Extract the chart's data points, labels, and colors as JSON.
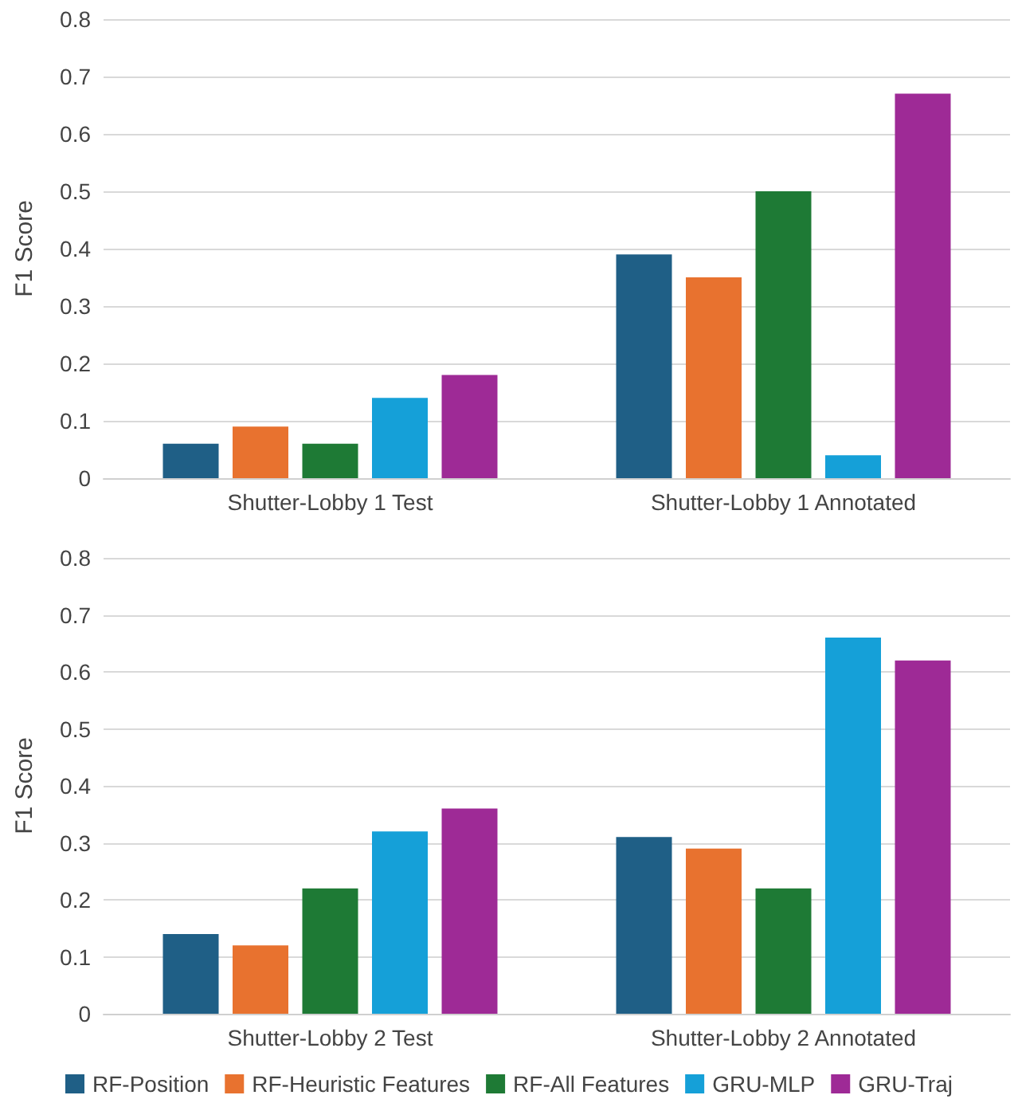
{
  "chart_data": [
    {
      "type": "bar",
      "ylabel": "F1 Score",
      "categories": [
        "Shutter-Lobby 1 Test",
        "Shutter-Lobby 1 Annotated"
      ],
      "ylim": [
        0,
        0.8
      ],
      "yticks": [
        0,
        0.1,
        0.2,
        0.3,
        0.4,
        0.5,
        0.6,
        0.7,
        0.8
      ],
      "grid": "y",
      "legend": false,
      "series": [
        {
          "color": "#1f5f86",
          "values": [
            0.06,
            0.39
          ]
        },
        {
          "color": "#e8722f",
          "values": [
            0.09,
            0.35
          ]
        },
        {
          "color": "#1e7a35",
          "values": [
            0.06,
            0.5
          ]
        },
        {
          "color": "#15a0d8",
          "values": [
            0.14,
            0.04
          ]
        },
        {
          "color": "#9e2a96",
          "values": [
            0.18,
            0.67
          ]
        }
      ]
    },
    {
      "type": "bar",
      "ylabel": "F1 Score",
      "categories": [
        "Shutter-Lobby 2 Test",
        "Shutter-Lobby 2 Annotated"
      ],
      "ylim": [
        0,
        0.8
      ],
      "yticks": [
        0,
        0.1,
        0.2,
        0.3,
        0.4,
        0.5,
        0.6,
        0.7,
        0.8
      ],
      "grid": "y",
      "legend": "bottom",
      "series": [
        {
          "name": "RF-Position",
          "color": "#1f5f86",
          "values": [
            0.14,
            0.31
          ]
        },
        {
          "name": "RF-Heuristic Features",
          "color": "#e8722f",
          "values": [
            0.12,
            0.29
          ]
        },
        {
          "name": "RF-All Features",
          "color": "#1e7a35",
          "values": [
            0.22,
            0.22
          ]
        },
        {
          "name": "GRU-MLP",
          "color": "#15a0d8",
          "values": [
            0.32,
            0.66
          ]
        },
        {
          "name": "GRU-Traj",
          "color": "#9e2a96",
          "values": [
            0.36,
            0.62
          ]
        }
      ]
    }
  ]
}
